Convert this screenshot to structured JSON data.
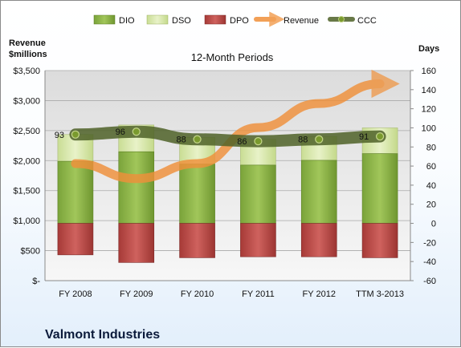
{
  "chart_data": {
    "type": "bar",
    "title": "12-Month Periods",
    "company": "Valmont Industries",
    "left_axis_title": [
      "Revenue",
      "$millions"
    ],
    "right_axis_title": "Days",
    "categories": [
      "FY 2008",
      "FY 2009",
      "FY 2010",
      "FY 2011",
      "FY 2012",
      "TTM 3-2013"
    ],
    "left_ticks": [
      "$-",
      "$500",
      "$1,000",
      "$1,500",
      "$2,000",
      "$2,500",
      "$3,000",
      "$3,500"
    ],
    "left_ylim": [
      0,
      3500
    ],
    "right_ticks": [
      "-60",
      "-40",
      "-20",
      "0",
      "20",
      "40",
      "60",
      "80",
      "100",
      "120",
      "140",
      "160"
    ],
    "right_ylim": [
      -60,
      160
    ],
    "legend": [
      "DIO",
      "DSO",
      "DPO",
      "Revenue",
      "CCC"
    ],
    "series": [
      {
        "name": "DIO",
        "values": [
          65,
          75,
          62,
          61,
          66,
          73
        ]
      },
      {
        "name": "DSO",
        "values": [
          28,
          28,
          28,
          27,
          25,
          27
        ]
      },
      {
        "name": "DPO",
        "values": [
          -33,
          -41,
          -36,
          -35,
          -35,
          -36
        ]
      },
      {
        "name": "Revenue",
        "values": [
          1950,
          1700,
          1950,
          2550,
          2950,
          3280
        ]
      },
      {
        "name": "CCC",
        "values": [
          93,
          96,
          88,
          86,
          88,
          91
        ]
      }
    ],
    "ccc_labels": [
      "93",
      "96",
      "88",
      "86",
      "88",
      "91"
    ],
    "colors": {
      "DIO": "#8fb743",
      "DSO": "#d7e8a8",
      "DPO": "#c0504d",
      "Revenue": "#f0903a",
      "CCC": "#4f6228"
    },
    "grid": true,
    "legend_position": "top"
  }
}
